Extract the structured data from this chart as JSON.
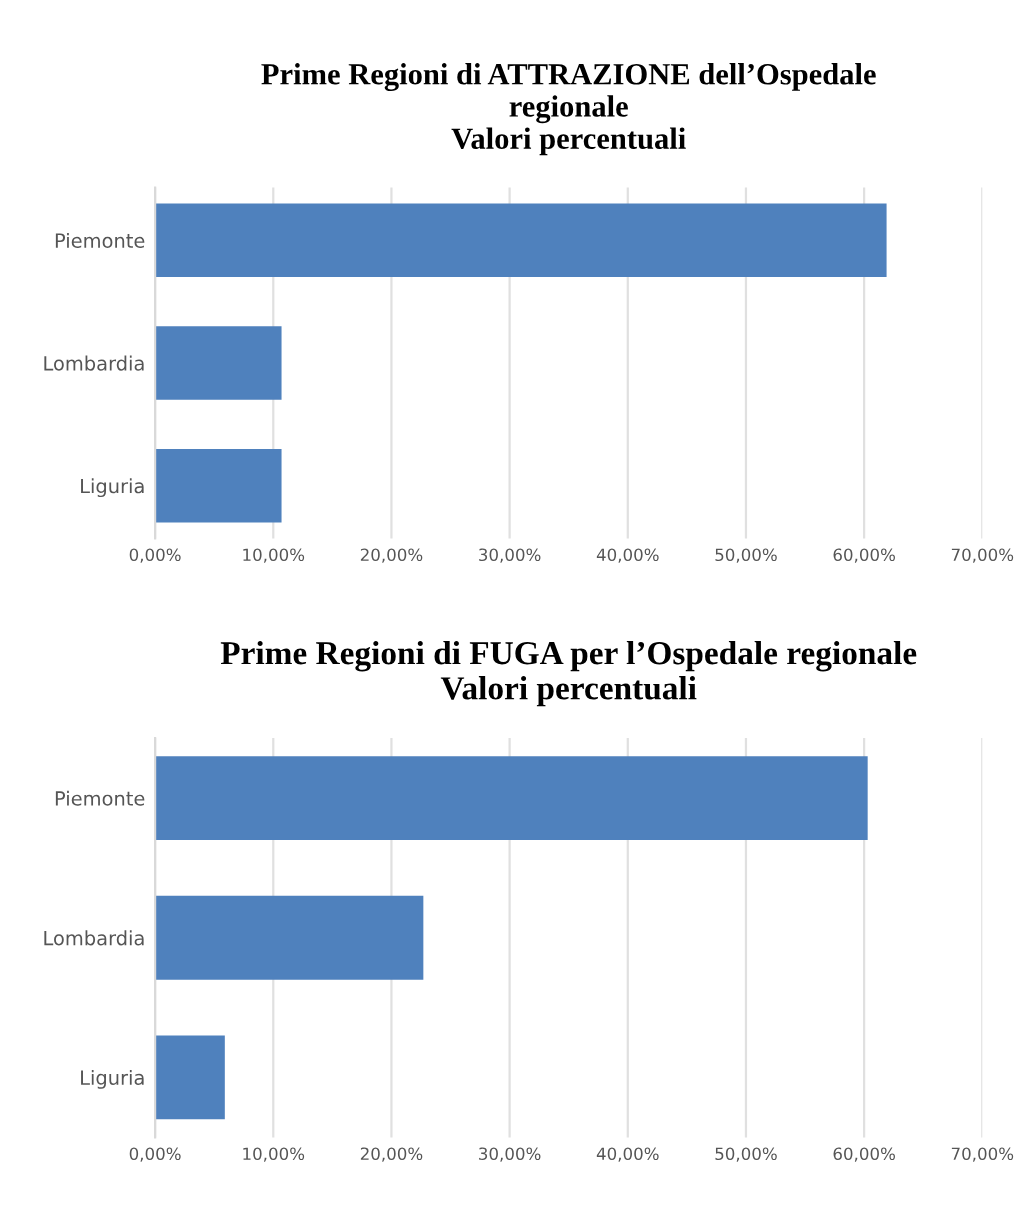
{
  "chart_data": [
    {
      "type": "bar",
      "orientation": "horizontal",
      "title": "Prime Regioni di ATTRAZIONE dell’Ospedale\nregionale\nValori percentuali",
      "categories": [
        "Piemonte",
        "Lombardia",
        "Liguria"
      ],
      "values": [
        61.9,
        10.7,
        10.7
      ],
      "color": "#4f81bd",
      "xlim": [
        0,
        70
      ],
      "xticks": [
        {
          "value": 0,
          "label": "0,00%"
        },
        {
          "value": 10,
          "label": "10,00%"
        },
        {
          "value": 20,
          "label": "20,00%"
        },
        {
          "value": 30,
          "label": "30,00%"
        },
        {
          "value": 40,
          "label": "40,00%"
        },
        {
          "value": 50,
          "label": "50,00%"
        },
        {
          "value": 60,
          "label": "60,00%"
        },
        {
          "value": 70,
          "label": "70,00%"
        }
      ],
      "grid": "x"
    },
    {
      "type": "bar",
      "orientation": "horizontal",
      "title": "Prime Regioni di FUGA per l’Ospedale regionale\nValori percentuali",
      "categories": [
        "Piemonte",
        "Lombardia",
        "Liguria"
      ],
      "values": [
        60.3,
        22.7,
        5.9
      ],
      "color": "#4f81bd",
      "xlim": [
        0,
        70
      ],
      "xticks": [
        {
          "value": 0,
          "label": "0,00%"
        },
        {
          "value": 10,
          "label": "10,00%"
        },
        {
          "value": 20,
          "label": "20,00%"
        },
        {
          "value": 30,
          "label": "30,00%"
        },
        {
          "value": 40,
          "label": "40,00%"
        },
        {
          "value": 50,
          "label": "50,00%"
        },
        {
          "value": 60,
          "label": "60,00%"
        },
        {
          "value": 70,
          "label": "70,00%"
        }
      ],
      "grid": "x"
    }
  ]
}
